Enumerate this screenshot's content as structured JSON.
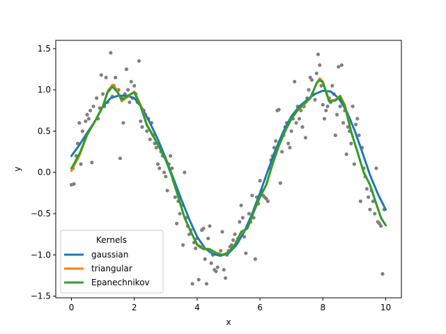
{
  "chart_data": {
    "type": "scatter",
    "title": "",
    "xlabel": "x",
    "ylabel": "y",
    "xlim": [
      -0.5,
      10.5
    ],
    "ylim": [
      -1.52,
      1.6
    ],
    "xticks": [
      0,
      2,
      4,
      6,
      8,
      10
    ],
    "yticks": [
      -1.5,
      -1.0,
      -0.5,
      0.0,
      0.5,
      1.0,
      1.5
    ],
    "xtick_labels": [
      "0",
      "2",
      "4",
      "6",
      "8",
      "10"
    ],
    "ytick_labels": [
      "−1.5",
      "−1.0",
      "−0.5",
      "0.0",
      "0.5",
      "1.0",
      "1.5"
    ],
    "grid": false,
    "legend": {
      "title": "Kernels",
      "placement": "lower-left",
      "entries": [
        "gaussian",
        "triangular",
        "Epanechnikov"
      ]
    },
    "scatter": {
      "color": "#808080",
      "points": [
        [
          0.0,
          -0.15
        ],
        [
          0.08,
          -0.14
        ],
        [
          0.05,
          0.05
        ],
        [
          0.15,
          0.2
        ],
        [
          0.2,
          0.35
        ],
        [
          0.25,
          0.6
        ],
        [
          0.3,
          0.1
        ],
        [
          0.35,
          0.5
        ],
        [
          0.4,
          0.4
        ],
        [
          0.45,
          0.62
        ],
        [
          0.5,
          0.7
        ],
        [
          0.55,
          0.65
        ],
        [
          0.6,
          0.75
        ],
        [
          0.65,
          0.12
        ],
        [
          0.7,
          0.8
        ],
        [
          0.8,
          0.9
        ],
        [
          0.85,
          0.65
        ],
        [
          0.9,
          0.78
        ],
        [
          0.95,
          1.18
        ],
        [
          1.0,
          0.95
        ],
        [
          1.05,
          0.8
        ],
        [
          1.1,
          1.15
        ],
        [
          1.15,
          0.85
        ],
        [
          1.2,
          1.0
        ],
        [
          1.25,
          1.45
        ],
        [
          1.3,
          0.92
        ],
        [
          1.35,
          1.05
        ],
        [
          1.4,
          1.15
        ],
        [
          1.5,
          1.0
        ],
        [
          1.55,
          0.17
        ],
        [
          1.6,
          0.9
        ],
        [
          1.65,
          0.6
        ],
        [
          1.7,
          0.95
        ],
        [
          1.75,
          1.25
        ],
        [
          1.8,
          1.0
        ],
        [
          1.85,
          0.85
        ],
        [
          1.9,
          1.1
        ],
        [
          1.95,
          0.9
        ],
        [
          2.0,
          1.05
        ],
        [
          2.05,
          0.95
        ],
        [
          2.1,
          0.85
        ],
        [
          2.15,
          1.35
        ],
        [
          2.2,
          0.62
        ],
        [
          2.25,
          0.55
        ],
        [
          2.3,
          0.75
        ],
        [
          2.35,
          0.7
        ],
        [
          2.4,
          0.5
        ],
        [
          2.45,
          0.65
        ],
        [
          2.5,
          0.4
        ],
        [
          2.55,
          0.6
        ],
        [
          2.6,
          0.45
        ],
        [
          2.65,
          0.35
        ],
        [
          2.7,
          0.3
        ],
        [
          2.75,
          0.1
        ],
        [
          2.8,
          0.05
        ],
        [
          2.85,
          0.25
        ],
        [
          2.9,
          0.2
        ],
        [
          2.95,
          0.0
        ],
        [
          3.0,
          -0.05
        ],
        [
          3.05,
          -0.22
        ],
        [
          3.1,
          0.1
        ],
        [
          3.15,
          0.2
        ],
        [
          3.2,
          0.05
        ],
        [
          3.25,
          -0.1
        ],
        [
          3.3,
          -0.3
        ],
        [
          3.35,
          -0.62
        ],
        [
          3.4,
          -0.35
        ],
        [
          3.45,
          -0.5
        ],
        [
          3.5,
          -0.4
        ],
        [
          3.55,
          -0.88
        ],
        [
          3.6,
          0.0
        ],
        [
          3.65,
          -0.55
        ],
        [
          3.7,
          -0.65
        ],
        [
          3.75,
          -0.75
        ],
        [
          3.8,
          -0.7
        ],
        [
          3.85,
          -1.35
        ],
        [
          3.9,
          -0.85
        ],
        [
          3.95,
          -0.92
        ],
        [
          4.0,
          -0.8
        ],
        [
          4.05,
          -1.3
        ],
        [
          4.1,
          -0.9
        ],
        [
          4.15,
          -0.7
        ],
        [
          4.2,
          -0.68
        ],
        [
          4.25,
          -1.05
        ],
        [
          4.3,
          -1.35
        ],
        [
          4.35,
          -0.8
        ],
        [
          4.4,
          -0.65
        ],
        [
          4.45,
          -1.1
        ],
        [
          4.5,
          -1.0
        ],
        [
          4.55,
          -1.18
        ],
        [
          4.6,
          -1.2
        ],
        [
          4.65,
          -1.15
        ],
        [
          4.7,
          -1.0
        ],
        [
          4.75,
          -0.95
        ],
        [
          4.8,
          -0.72
        ],
        [
          4.85,
          -1.18
        ],
        [
          4.9,
          -1.28
        ],
        [
          4.95,
          -1.0
        ],
        [
          5.0,
          -0.95
        ],
        [
          5.05,
          -0.9
        ],
        [
          5.1,
          -0.88
        ],
        [
          5.15,
          -0.82
        ],
        [
          5.2,
          -0.75
        ],
        [
          5.25,
          -0.85
        ],
        [
          5.3,
          -0.8
        ],
        [
          5.35,
          -0.6
        ],
        [
          5.4,
          -0.4
        ],
        [
          5.45,
          -0.55
        ],
        [
          5.5,
          -0.78
        ],
        [
          5.55,
          -0.98
        ],
        [
          5.6,
          -0.65
        ],
        [
          5.65,
          -0.5
        ],
        [
          5.7,
          -0.6
        ],
        [
          5.75,
          -0.28
        ],
        [
          5.8,
          -0.55
        ],
        [
          5.85,
          -1.05
        ],
        [
          5.9,
          -0.3
        ],
        [
          5.95,
          -0.38
        ],
        [
          6.0,
          -0.1
        ],
        [
          6.05,
          -0.22
        ],
        [
          6.1,
          -0.28
        ],
        [
          6.15,
          -0.3
        ],
        [
          6.2,
          -0.32
        ],
        [
          6.25,
          -0.35
        ],
        [
          6.3,
          0.05
        ],
        [
          6.35,
          0.15
        ],
        [
          6.4,
          0.2
        ],
        [
          6.45,
          0.3
        ],
        [
          6.5,
          0.38
        ],
        [
          6.55,
          0.75
        ],
        [
          6.6,
          0.76
        ],
        [
          6.65,
          -0.13
        ],
        [
          6.7,
          0.25
        ],
        [
          6.75,
          0.45
        ],
        [
          6.8,
          0.55
        ],
        [
          6.85,
          0.6
        ],
        [
          6.9,
          0.35
        ],
        [
          6.95,
          0.3
        ],
        [
          7.0,
          0.5
        ],
        [
          7.05,
          0.65
        ],
        [
          7.1,
          1.1
        ],
        [
          7.15,
          0.6
        ],
        [
          7.2,
          0.8
        ],
        [
          7.25,
          0.65
        ],
        [
          7.3,
          0.75
        ],
        [
          7.35,
          0.55
        ],
        [
          7.4,
          0.8
        ],
        [
          7.45,
          0.42
        ],
        [
          7.5,
          0.9
        ],
        [
          7.55,
          1.0
        ],
        [
          7.6,
          1.15
        ],
        [
          7.65,
          1.12
        ],
        [
          7.7,
          0.95
        ],
        [
          7.75,
          0.88
        ],
        [
          7.8,
          1.2
        ],
        [
          7.85,
          1.43
        ],
        [
          7.9,
          1.3
        ],
        [
          7.95,
          1.05
        ],
        [
          8.0,
          0.82
        ],
        [
          8.05,
          0.65
        ],
        [
          8.1,
          0.75
        ],
        [
          8.15,
          0.8
        ],
        [
          8.2,
          0.9
        ],
        [
          8.25,
          0.85
        ],
        [
          8.3,
          1.05
        ],
        [
          8.35,
          0.95
        ],
        [
          8.4,
          0.45
        ],
        [
          8.45,
          0.7
        ],
        [
          8.5,
          1.28
        ],
        [
          8.55,
          0.8
        ],
        [
          8.6,
          1.3
        ],
        [
          8.65,
          0.6
        ],
        [
          8.7,
          0.75
        ],
        [
          8.75,
          0.22
        ],
        [
          8.8,
          0.55
        ],
        [
          8.85,
          0.5
        ],
        [
          8.9,
          0.35
        ],
        [
          8.95,
          0.8
        ],
        [
          9.0,
          0.1
        ],
        [
          9.05,
          0.58
        ],
        [
          9.1,
          0.65
        ],
        [
          9.15,
          0.45
        ],
        [
          9.2,
          -0.35
        ],
        [
          9.25,
          0.3
        ],
        [
          9.3,
          0.05
        ],
        [
          9.35,
          -0.05
        ],
        [
          9.4,
          -0.2
        ],
        [
          9.45,
          -0.3
        ],
        [
          9.5,
          -0.45
        ],
        [
          9.55,
          -0.22
        ],
        [
          9.6,
          -0.35
        ],
        [
          9.65,
          -0.5
        ],
        [
          9.7,
          0.05
        ],
        [
          9.75,
          -0.6
        ],
        [
          9.8,
          -0.62
        ],
        [
          9.85,
          -0.65
        ],
        [
          9.9,
          -1.23
        ],
        [
          9.95,
          -0.45
        ]
      ]
    },
    "series": [
      {
        "name": "gaussian",
        "color": "#1f77b4",
        "x": [
          0,
          0.25,
          0.5,
          0.75,
          1,
          1.25,
          1.5,
          1.75,
          2,
          2.25,
          2.5,
          2.75,
          3,
          3.25,
          3.5,
          3.75,
          4,
          4.25,
          4.5,
          4.75,
          5,
          5.25,
          5.5,
          5.75,
          6,
          6.25,
          6.5,
          6.75,
          7,
          7.25,
          7.5,
          7.75,
          8,
          8.25,
          8.5,
          8.75,
          9,
          9.25,
          9.5,
          9.75,
          10
        ],
        "y": [
          0.2,
          0.33,
          0.48,
          0.62,
          0.8,
          0.9,
          0.93,
          0.93,
          0.9,
          0.78,
          0.6,
          0.4,
          0.17,
          -0.08,
          -0.33,
          -0.57,
          -0.78,
          -0.92,
          -0.99,
          -1.01,
          -0.98,
          -0.88,
          -0.72,
          -0.5,
          -0.25,
          0.02,
          0.28,
          0.5,
          0.68,
          0.8,
          0.88,
          0.95,
          0.99,
          0.98,
          0.9,
          0.75,
          0.52,
          0.25,
          -0.03,
          -0.26,
          -0.45
        ]
      },
      {
        "name": "triangular",
        "color": "#ff7f0e",
        "x": [
          0,
          0.25,
          0.5,
          0.75,
          1,
          1.15,
          1.3,
          1.45,
          1.6,
          1.8,
          2,
          2.2,
          2.4,
          2.6,
          2.8,
          3,
          3.2,
          3.4,
          3.6,
          3.8,
          4,
          4.2,
          4.4,
          4.6,
          4.8,
          5,
          5.2,
          5.4,
          5.6,
          5.8,
          6,
          6.2,
          6.4,
          6.6,
          6.8,
          7,
          7.2,
          7.4,
          7.6,
          7.8,
          7.9,
          8,
          8.2,
          8.4,
          8.55,
          8.7,
          8.9,
          9.1,
          9.3,
          9.5,
          9.7,
          9.85,
          10
        ],
        "y": [
          0.02,
          0.2,
          0.45,
          0.62,
          0.8,
          0.98,
          1.06,
          1.0,
          0.86,
          0.92,
          0.98,
          0.82,
          0.58,
          0.45,
          0.3,
          0.15,
          -0.05,
          -0.3,
          -0.55,
          -0.72,
          -0.87,
          -0.92,
          -0.93,
          -0.97,
          -1.0,
          -0.97,
          -0.88,
          -0.73,
          -0.68,
          -0.48,
          -0.3,
          -0.15,
          0.1,
          0.32,
          0.5,
          0.65,
          0.75,
          0.82,
          0.9,
          1.08,
          1.14,
          1.1,
          0.87,
          0.88,
          0.93,
          0.82,
          0.5,
          0.25,
          0.0,
          -0.15,
          -0.38,
          -0.55,
          -0.64
        ]
      },
      {
        "name": "Epanechnikov",
        "color": "#2ca02c",
        "x": [
          0,
          0.25,
          0.5,
          0.75,
          1,
          1.15,
          1.3,
          1.45,
          1.6,
          1.8,
          2,
          2.2,
          2.4,
          2.6,
          2.8,
          3,
          3.2,
          3.4,
          3.6,
          3.8,
          4,
          4.2,
          4.4,
          4.6,
          4.8,
          5,
          5.2,
          5.4,
          5.6,
          5.8,
          6,
          6.2,
          6.4,
          6.6,
          6.8,
          7,
          7.2,
          7.4,
          7.6,
          7.8,
          7.9,
          8,
          8.2,
          8.4,
          8.55,
          8.7,
          8.9,
          9.1,
          9.3,
          9.5,
          9.7,
          9.85,
          10
        ],
        "y": [
          0.05,
          0.22,
          0.46,
          0.62,
          0.8,
          0.97,
          1.04,
          0.98,
          0.88,
          0.93,
          0.97,
          0.8,
          0.57,
          0.44,
          0.3,
          0.15,
          -0.05,
          -0.3,
          -0.55,
          -0.72,
          -0.88,
          -0.93,
          -0.93,
          -0.98,
          -1.0,
          -0.97,
          -0.88,
          -0.72,
          -0.68,
          -0.48,
          -0.3,
          -0.15,
          0.1,
          0.32,
          0.5,
          0.65,
          0.76,
          0.83,
          0.9,
          1.08,
          1.12,
          1.09,
          0.86,
          0.87,
          0.92,
          0.8,
          0.49,
          0.25,
          0.0,
          -0.15,
          -0.38,
          -0.55,
          -0.64
        ]
      }
    ]
  }
}
